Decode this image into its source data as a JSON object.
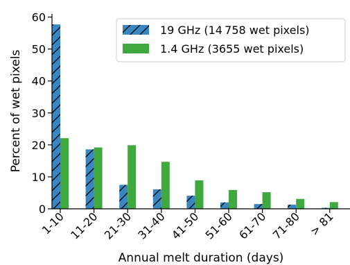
{
  "chart_data": {
    "type": "bar",
    "xlabel": "Annual melt duration (days)",
    "ylabel": "Percent of wet pixels",
    "ylim": [
      0,
      61
    ],
    "yticks": [
      0,
      10,
      20,
      30,
      40,
      50,
      60
    ],
    "categories": [
      "1-10",
      "11-20",
      "21-30",
      "31-40",
      "41-50",
      "51-60",
      "61-70",
      "71-80",
      "> 81"
    ],
    "grid": false,
    "legend_position": "top-right",
    "series": [
      {
        "name": "19 GHz (14 758 wet pixels)",
        "color": "#3a86c0",
        "hatch": "diagonal",
        "values": [
          57.7,
          18.6,
          7.5,
          6.1,
          4.1,
          2.0,
          1.5,
          1.3,
          0.3
        ]
      },
      {
        "name": "1.4 GHz (3655 wet pixels)",
        "color": "#3fa83f",
        "hatch": "none",
        "values": [
          22.1,
          19.2,
          19.9,
          14.7,
          8.9,
          5.9,
          5.2,
          3.1,
          2.1
        ]
      }
    ]
  }
}
